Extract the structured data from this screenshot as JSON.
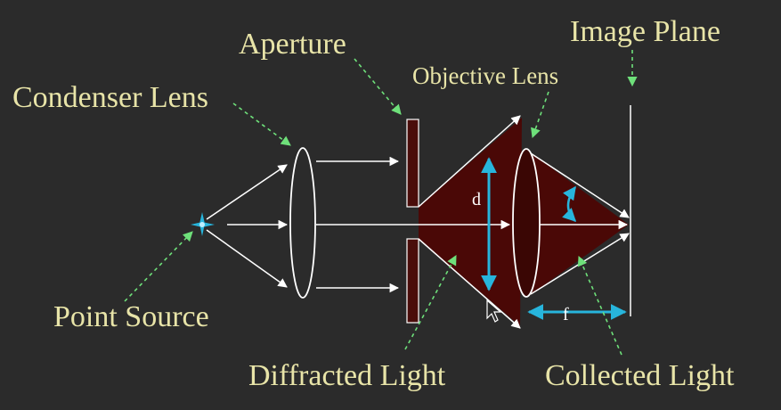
{
  "labels": {
    "aperture": "Aperture",
    "image_plane": "Image Plane",
    "objective_lens": "Objective Lens",
    "condenser_lens": "Condenser Lens",
    "point_source": "Point Source",
    "diffracted_light": "Diffracted Light",
    "collected_light": "Collected Light",
    "diameter": "d",
    "focal_length": "f"
  },
  "colors": {
    "background": "#2b2b2b",
    "label_text": "#e8e4a8",
    "light_cone": "#4a0806",
    "rays": "#ffffff",
    "dimension_arrows": "#27b5dc",
    "pointer_arrows": "#6ee07a",
    "aperture_plate": "#4a0d0a"
  }
}
